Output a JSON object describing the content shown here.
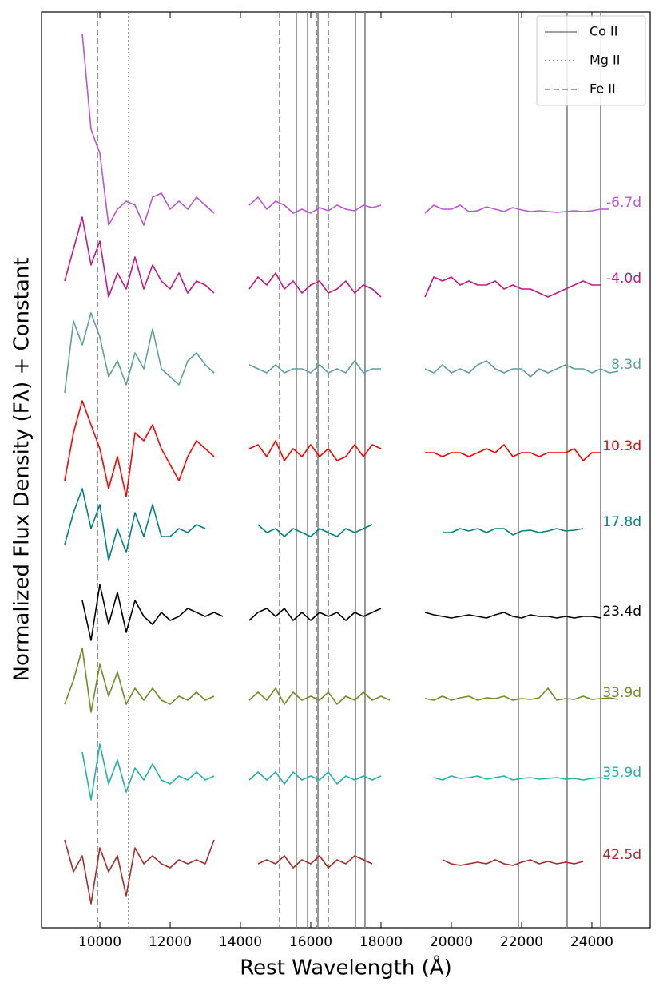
{
  "chart_data": {
    "type": "line",
    "xlabel": "Rest Wavelength (Å)",
    "ylabel": "Normalized Flux Density (Fλ) + Constant",
    "xlim": [
      8340,
      25660
    ],
    "ylim": [
      0,
      11.47
    ],
    "xticks": [
      10000,
      12000,
      14000,
      16000,
      18000,
      20000,
      22000,
      24000
    ],
    "legend": "upper right",
    "x": [
      9000,
      9250,
      9500,
      9750,
      10000,
      10250,
      10500,
      10750,
      11000,
      11250,
      11500,
      11750,
      12000,
      12250,
      12500,
      12750,
      13000,
      13250,
      13500,
      13750,
      14000,
      14250,
      14500,
      14750,
      15000,
      15250,
      15500,
      15750,
      16000,
      16250,
      16500,
      16750,
      17000,
      17250,
      17500,
      17750,
      18000,
      18250,
      18500,
      18750,
      19000,
      19250,
      19500,
      19750,
      20000,
      20250,
      20500,
      20750,
      21000,
      21250,
      21500,
      21750,
      22000,
      22250,
      22500,
      22750,
      23000,
      23250,
      23500,
      23750,
      24000,
      24250,
      24500,
      24750
    ],
    "lines": [
      {
        "name": "Co II",
        "style": "solid",
        "color": "#808080",
        "x": [
          15590,
          15910,
          16205,
          17273,
          17545,
          21909,
          23295,
          24250
        ]
      },
      {
        "name": "Mg II",
        "style": "dotted",
        "color": "#808080",
        "x": [
          10818
        ]
      },
      {
        "name": "Fe II",
        "style": "dashed",
        "color": "#808080",
        "x": [
          9932,
          15114,
          16160,
          16500
        ]
      }
    ],
    "series": [
      {
        "name": "-6.7d",
        "color": "#ba55d3",
        "values": [
          null,
          null,
          11.2,
          10.0,
          9.7,
          8.8,
          9.0,
          9.1,
          9.05,
          8.8,
          9.15,
          9.2,
          9.0,
          9.1,
          9.0,
          9.15,
          9.05,
          8.95,
          null,
          null,
          null,
          9.05,
          9.15,
          9.0,
          9.1,
          9.05,
          8.95,
          9.0,
          8.95,
          9.02,
          8.98,
          9.05,
          9.0,
          8.98,
          9.05,
          9.02,
          9.05,
          null,
          null,
          null,
          null,
          8.95,
          9.05,
          9.0,
          9.0,
          9.05,
          8.97,
          8.98,
          9.03,
          9.0,
          8.97,
          9.02,
          8.99,
          8.97,
          8.98,
          8.97,
          8.96,
          8.97,
          8.98,
          8.97,
          8.98,
          9.0,
          9.0,
          null
        ]
      },
      {
        "name": "-4.0d",
        "color": "#c71585",
        "values": [
          8.1,
          8.5,
          8.9,
          8.3,
          8.6,
          7.9,
          8.2,
          8.0,
          8.4,
          8.0,
          8.3,
          8.1,
          8.0,
          8.2,
          7.95,
          8.1,
          8.05,
          7.95,
          null,
          null,
          null,
          8.0,
          8.15,
          8.05,
          8.2,
          8.0,
          8.1,
          7.95,
          8.05,
          8.1,
          7.95,
          8.0,
          8.1,
          7.95,
          8.05,
          8.0,
          7.9,
          null,
          null,
          null,
          null,
          7.9,
          8.15,
          8.1,
          8.15,
          8.05,
          8.1,
          8.05,
          8.05,
          8.1,
          8.0,
          8.05,
          8.0,
          8.0,
          7.95,
          7.9,
          7.95,
          8.0,
          8.05,
          8.1,
          8.05,
          8.05,
          null,
          null
        ]
      },
      {
        "name": "8.3d",
        "color": "#5f9ea0",
        "values": [
          6.7,
          7.6,
          7.3,
          7.7,
          7.4,
          6.9,
          7.1,
          6.8,
          7.2,
          7.0,
          7.5,
          7.0,
          6.9,
          6.8,
          7.1,
          7.2,
          7.05,
          6.95,
          null,
          null,
          null,
          7.05,
          7.0,
          6.95,
          7.05,
          6.95,
          7.0,
          7.0,
          6.95,
          7.05,
          6.95,
          7.0,
          6.95,
          7.1,
          6.95,
          7.0,
          7.0,
          null,
          null,
          null,
          null,
          7.0,
          6.95,
          7.05,
          6.95,
          7.0,
          6.95,
          7.05,
          7.1,
          7.0,
          6.95,
          7.0,
          7.0,
          6.9,
          7.0,
          6.95,
          7.0,
          7.05,
          7.0,
          7.0,
          6.95,
          7.0,
          6.95,
          6.97
        ]
      },
      {
        "name": "10.3d",
        "color": "#ff0000",
        "values": [
          5.6,
          6.2,
          6.6,
          6.3,
          6.0,
          5.5,
          5.9,
          5.4,
          6.2,
          6.1,
          6.3,
          6.0,
          5.8,
          5.6,
          5.9,
          6.1,
          6.0,
          5.9,
          null,
          null,
          null,
          6.0,
          6.05,
          5.9,
          6.1,
          5.85,
          6.0,
          5.9,
          6.05,
          5.9,
          6.0,
          5.85,
          5.9,
          6.05,
          5.9,
          6.05,
          6.0,
          null,
          null,
          null,
          null,
          5.95,
          5.95,
          5.9,
          5.95,
          5.95,
          5.9,
          5.95,
          6.0,
          5.95,
          6.05,
          5.9,
          5.95,
          5.95,
          5.9,
          5.95,
          5.95,
          5.95,
          6.0,
          5.85,
          5.95,
          5.95,
          null,
          null
        ]
      },
      {
        "name": "17.8d",
        "color": "#008080",
        "values": [
          4.8,
          5.2,
          5.5,
          5.0,
          5.3,
          4.6,
          5.0,
          4.7,
          5.2,
          4.9,
          5.3,
          4.9,
          4.9,
          5.0,
          4.95,
          5.05,
          5.0,
          null,
          null,
          null,
          null,
          null,
          5.05,
          4.95,
          5.0,
          4.9,
          5.0,
          4.95,
          4.9,
          5.0,
          4.95,
          4.9,
          5.0,
          4.95,
          5.0,
          5.05,
          null,
          null,
          null,
          null,
          null,
          null,
          null,
          4.95,
          4.95,
          5.0,
          4.97,
          5.0,
          4.95,
          5.0,
          5.0,
          4.92,
          4.97,
          4.98,
          4.95,
          4.97,
          5.0,
          4.97,
          4.98,
          5.0,
          null,
          null,
          null,
          null
        ]
      },
      {
        "name": "23.4d",
        "color": "#000000",
        "values": [
          null,
          null,
          4.1,
          3.6,
          4.3,
          3.8,
          4.2,
          3.7,
          4.1,
          3.9,
          3.8,
          3.95,
          3.85,
          3.9,
          4.0,
          3.95,
          3.9,
          3.95,
          3.9,
          null,
          null,
          3.85,
          3.95,
          4.0,
          3.9,
          4.0,
          3.85,
          3.95,
          3.85,
          3.95,
          3.9,
          3.95,
          3.85,
          3.95,
          3.9,
          3.95,
          4.0,
          null,
          null,
          null,
          null,
          3.95,
          3.92,
          3.9,
          3.88,
          3.9,
          3.92,
          3.9,
          3.88,
          3.92,
          3.95,
          3.9,
          3.88,
          3.92,
          3.9,
          3.9,
          3.88,
          3.9,
          3.88,
          3.9,
          3.9,
          3.88,
          null,
          null
        ]
      },
      {
        "name": "33.9d",
        "color": "#6b8e23",
        "values": [
          2.8,
          3.1,
          3.5,
          2.7,
          3.3,
          2.9,
          3.2,
          2.8,
          3.0,
          2.85,
          3.0,
          2.85,
          2.8,
          2.9,
          2.85,
          2.95,
          2.85,
          2.9,
          null,
          null,
          null,
          2.85,
          2.95,
          2.85,
          3.0,
          2.8,
          2.95,
          2.85,
          2.9,
          2.85,
          2.95,
          2.8,
          2.9,
          2.85,
          2.95,
          2.85,
          2.9,
          2.85,
          null,
          null,
          null,
          2.87,
          2.85,
          2.9,
          2.85,
          2.88,
          2.9,
          2.85,
          2.88,
          2.87,
          2.9,
          2.85,
          2.87,
          2.86,
          2.88,
          3.0,
          2.85,
          2.87,
          2.86,
          2.9,
          2.86,
          2.87,
          2.88,
          2.86
        ]
      },
      {
        "name": "35.9d",
        "color": "#20b2aa",
        "values": [
          null,
          null,
          2.2,
          1.6,
          2.3,
          1.8,
          2.1,
          1.7,
          2.0,
          1.85,
          2.05,
          1.85,
          1.8,
          1.9,
          1.85,
          1.95,
          1.85,
          1.9,
          null,
          null,
          null,
          1.85,
          1.95,
          1.85,
          1.95,
          1.8,
          1.95,
          1.85,
          1.9,
          1.85,
          1.95,
          1.8,
          1.9,
          1.85,
          1.9,
          1.85,
          1.9,
          null,
          null,
          null,
          null,
          null,
          1.88,
          1.85,
          1.9,
          1.87,
          1.88,
          1.9,
          1.86,
          1.88,
          1.9,
          1.85,
          1.87,
          1.88,
          1.86,
          1.87,
          1.88,
          1.86,
          1.87,
          1.85,
          1.87,
          1.88,
          1.86,
          null
        ]
      },
      {
        "name": "42.5d",
        "color": "#a52a2a",
        "values": [
          1.1,
          0.7,
          0.9,
          0.3,
          1.0,
          0.7,
          0.9,
          0.4,
          1.0,
          0.8,
          0.9,
          0.8,
          0.75,
          0.85,
          0.8,
          0.85,
          0.8,
          1.1,
          null,
          null,
          null,
          null,
          0.8,
          0.85,
          0.8,
          0.9,
          0.75,
          0.85,
          0.8,
          0.9,
          0.75,
          0.85,
          0.8,
          0.9,
          0.85,
          0.8,
          null,
          null,
          null,
          null,
          null,
          null,
          null,
          0.85,
          0.8,
          0.78,
          0.8,
          0.82,
          0.8,
          0.85,
          0.8,
          0.78,
          0.82,
          0.85,
          0.8,
          0.83,
          0.8,
          0.82,
          0.8,
          0.83,
          null,
          null,
          null,
          null
        ]
      }
    ]
  }
}
